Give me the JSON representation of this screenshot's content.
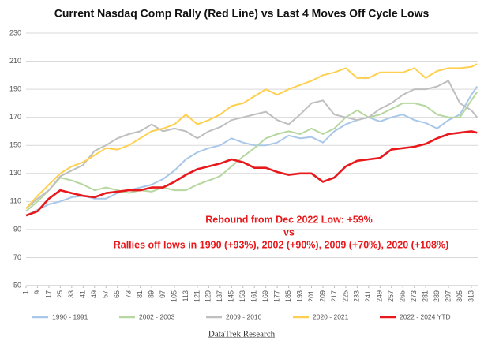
{
  "chart_data": {
    "type": "line",
    "title": "Current Nasdaq Comp Rally (Red Line) vs Last 4 Moves Off Cycle Lows",
    "x": [
      1,
      9,
      17,
      25,
      33,
      41,
      49,
      57,
      65,
      73,
      81,
      89,
      97,
      105,
      113,
      121,
      129,
      137,
      145,
      153,
      161,
      169,
      177,
      185,
      193,
      201,
      209,
      217,
      225,
      233,
      241,
      249,
      257,
      265,
      273,
      281,
      289,
      297,
      305,
      313,
      317
    ],
    "xlim": [
      1,
      318
    ],
    "xticks": [
      1,
      9,
      17,
      25,
      33,
      41,
      49,
      57,
      65,
      73,
      81,
      89,
      97,
      105,
      113,
      121,
      129,
      137,
      145,
      153,
      161,
      169,
      177,
      185,
      193,
      201,
      209,
      217,
      225,
      233,
      241,
      249,
      257,
      265,
      273,
      281,
      289,
      297,
      305,
      313
    ],
    "ylim": [
      50,
      230
    ],
    "yticks": [
      50,
      70,
      90,
      110,
      130,
      150,
      170,
      190,
      210,
      230
    ],
    "grid": true,
    "legend": "bottom",
    "series": [
      {
        "name": "1990 - 1991",
        "color": "#a9c7e8",
        "values": [
          100,
          104,
          108,
          110,
          113,
          114,
          112,
          112,
          116,
          118,
          120,
          122,
          126,
          132,
          140,
          145,
          148,
          150,
          155,
          152,
          150,
          150,
          152,
          157,
          155,
          156,
          152,
          160,
          165,
          168,
          170,
          167,
          170,
          172,
          168,
          166,
          162,
          168,
          172,
          186,
          192
        ]
      },
      {
        "name": "2002 - 2003",
        "color": "#b6d7a0",
        "values": [
          103,
          110,
          118,
          127,
          125,
          122,
          118,
          120,
          118,
          116,
          118,
          117,
          120,
          118,
          118,
          122,
          125,
          128,
          135,
          142,
          148,
          155,
          158,
          160,
          158,
          162,
          158,
          162,
          170,
          175,
          170,
          172,
          176,
          180,
          180,
          178,
          172,
          170,
          170,
          182,
          188
        ]
      },
      {
        "name": "2009 - 2010",
        "color": "#bfbfbf",
        "values": [
          105,
          112,
          118,
          128,
          132,
          136,
          146,
          150,
          155,
          158,
          160,
          165,
          160,
          162,
          160,
          155,
          160,
          163,
          168,
          170,
          172,
          174,
          168,
          165,
          172,
          180,
          182,
          172,
          170,
          168,
          170,
          176,
          180,
          186,
          190,
          190,
          192,
          196,
          180,
          175,
          170
        ]
      },
      {
        "name": "2020 - 2021",
        "color": "#ffd050",
        "values": [
          105,
          114,
          122,
          130,
          135,
          138,
          143,
          148,
          147,
          150,
          155,
          160,
          162,
          165,
          172,
          165,
          168,
          172,
          178,
          180,
          185,
          190,
          186,
          190,
          193,
          196,
          200,
          202,
          205,
          198,
          198,
          202,
          202,
          202,
          205,
          198,
          203,
          205,
          205,
          206,
          208
        ]
      },
      {
        "name": "2022 - 2024 YTD",
        "color": "#e8191c",
        "values": [
          100,
          103,
          112,
          118,
          116,
          114,
          113,
          116,
          117,
          118,
          118,
          120,
          120,
          124,
          129,
          133,
          135,
          137,
          140,
          138,
          134,
          134,
          131,
          129,
          130,
          130,
          124,
          127,
          135,
          139,
          140,
          141,
          147,
          148,
          149,
          151,
          155,
          158,
          159,
          160,
          159
        ]
      }
    ],
    "annotations": [
      "Rebound from Dec 2022 Low: +59%",
      "vs",
      "Rallies off lows in 1990 (+93%), 2002 (+90%), 2009 (+70%), 2020 (+108%)"
    ],
    "source": "DataTrek Research"
  }
}
